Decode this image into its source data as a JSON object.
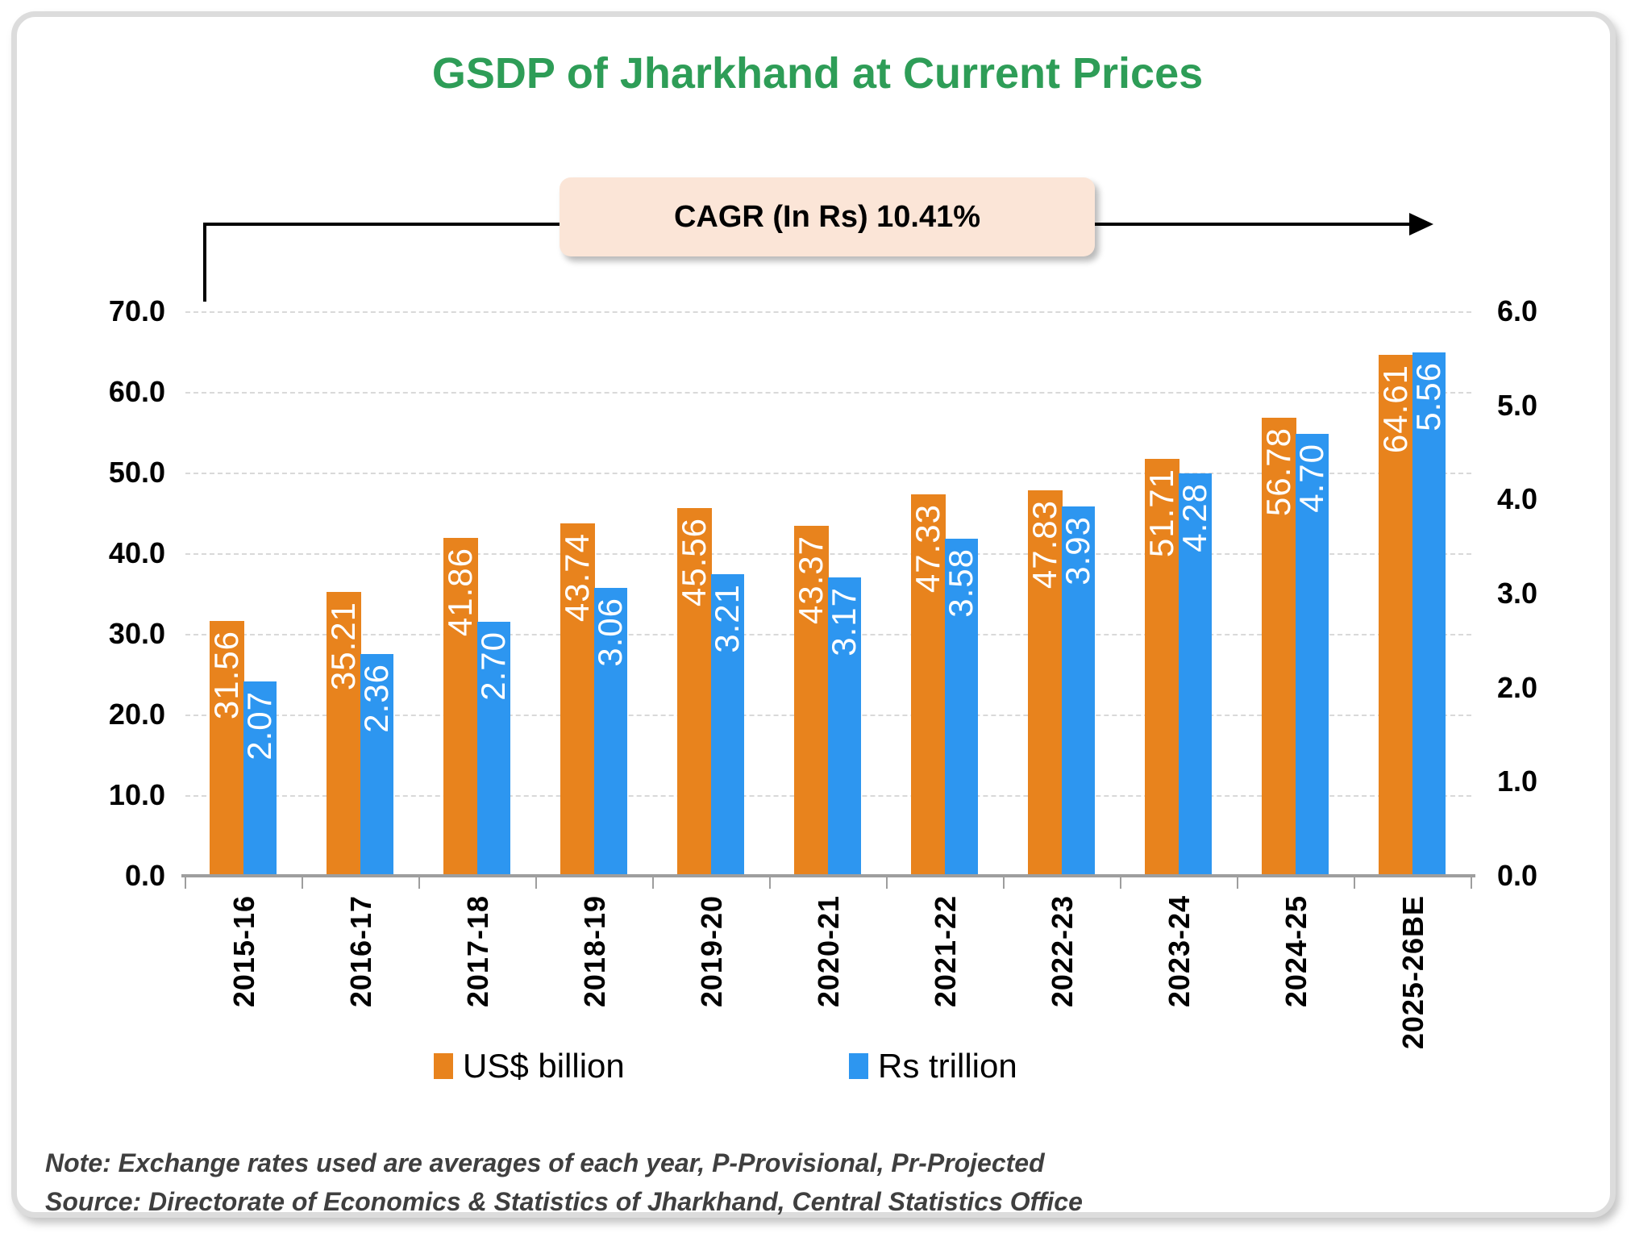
{
  "title": "GSDP of Jharkhand at Current Prices",
  "cagr_label": "CAGR (In Rs) 10.41%",
  "legend": [
    {
      "label": "US$ billion",
      "color": "#E8831D"
    },
    {
      "label": "Rs trillion",
      "color": "#2D96F0"
    }
  ],
  "note": "Note: Exchange rates used are averages of each year, P-Provisional, Pr-Projected",
  "source": "Source: Directorate of Economics & Statistics of Jharkhand, Central Statistics Office",
  "colors": {
    "title_green": "#2E9D57",
    "orange_series": "#E8831D",
    "blue_series": "#2D96F0",
    "cagr_box_bg": "#FBE5D7",
    "gridline": "#D9D9D9",
    "axis_line": "#9E9E9E",
    "note_text": "#3F3F3F"
  },
  "chart_data": {
    "type": "bar",
    "title": "GSDP of Jharkhand at Current Prices",
    "annotation": "CAGR (In Rs) 10.41%",
    "categories": [
      "2015-16",
      "2016-17",
      "2017-18",
      "2018-19",
      "2019-20",
      "2020-21",
      "2021-22",
      "2022-23",
      "2023-24",
      "2024-25",
      "2025-26BE"
    ],
    "series": [
      {
        "name": "US$ billion",
        "axis": "left",
        "color": "#E8831D",
        "values": [
          31.56,
          35.21,
          41.86,
          43.74,
          45.56,
          43.37,
          47.33,
          47.83,
          51.71,
          56.78,
          64.61
        ]
      },
      {
        "name": "Rs trillion",
        "axis": "right",
        "color": "#2D96F0",
        "values": [
          2.07,
          2.36,
          2.7,
          3.06,
          3.21,
          3.17,
          3.58,
          3.93,
          4.28,
          4.7,
          5.56
        ]
      }
    ],
    "left_axis": {
      "min": 0,
      "max": 70,
      "step": 10,
      "tick_format": "0.0"
    },
    "right_axis": {
      "min": 0,
      "max": 6,
      "step": 1,
      "tick_format": "0.0"
    },
    "grid": "horizontal dashed, left-axis intervals",
    "legend_position": "bottom",
    "data_labels": "inside bar top, rotated 90deg, white"
  }
}
